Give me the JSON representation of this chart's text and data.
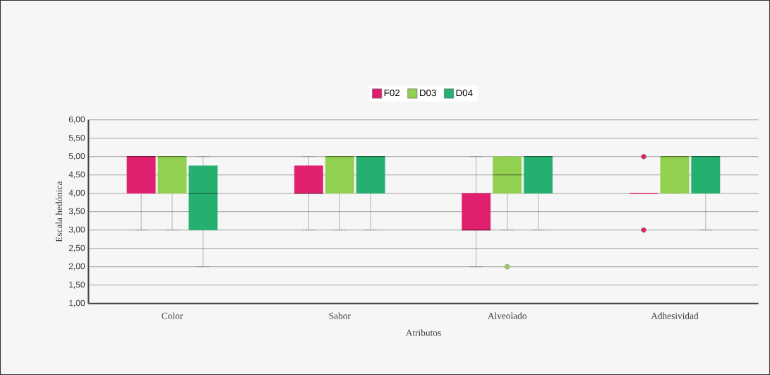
{
  "chart_data": {
    "type": "box",
    "xlabel": "Atributos",
    "ylabel": "Escala hedónica",
    "categories": [
      "Color",
      "Sabor",
      "Alveolado",
      "Adhesividad"
    ],
    "ylim": [
      1,
      6
    ],
    "yticks": [
      {
        "value": 1,
        "label": "1,00"
      },
      {
        "value": 1.5,
        "label": "1,50"
      },
      {
        "value": 2,
        "label": "2,00"
      },
      {
        "value": 2.5,
        "label": "2,50"
      },
      {
        "value": 3,
        "label": "3,00"
      },
      {
        "value": 3.5,
        "label": "3,50"
      },
      {
        "value": 4,
        "label": "4,00"
      },
      {
        "value": 4.5,
        "label": "4,50"
      },
      {
        "value": 5,
        "label": "5,00"
      },
      {
        "value": 5.5,
        "label": "5,50"
      },
      {
        "value": 6,
        "label": "6,00"
      }
    ],
    "grid": "y",
    "legend": "top",
    "series": [
      {
        "name": "F02",
        "color": "#e0206e",
        "boxes": [
          {
            "low": 3,
            "q1": 4,
            "median": 5,
            "q3": 5,
            "high": 5
          },
          {
            "low": 3,
            "q1": 4,
            "median": 4,
            "q3": 4.75,
            "high": 5
          },
          {
            "low": 2,
            "q1": 3,
            "median": 3,
            "q3": 4,
            "high": 5
          },
          {
            "low": 4,
            "q1": 4,
            "median": 4,
            "q3": 4,
            "high": 4,
            "outliers": [
              5,
              3
            ]
          }
        ]
      },
      {
        "name": "D03",
        "color": "#92d050",
        "boxes": [
          {
            "low": 3,
            "q1": 4,
            "median": 5,
            "q3": 5,
            "high": 5
          },
          {
            "low": 3,
            "q1": 4,
            "median": 5,
            "q3": 5,
            "high": 5
          },
          {
            "low": 3,
            "q1": 4,
            "median": 4.5,
            "q3": 5,
            "high": 5,
            "outliers": [
              2
            ]
          },
          {
            "low": 4,
            "q1": 4,
            "median": 5,
            "q3": 5,
            "high": 5
          }
        ]
      },
      {
        "name": "D04",
        "color": "#26b06f",
        "boxes": [
          {
            "low": 2,
            "q1": 3,
            "median": 4,
            "q3": 4.75,
            "high": 5
          },
          {
            "low": 3,
            "q1": 4,
            "median": 5,
            "q3": 5,
            "high": 5
          },
          {
            "low": 3,
            "q1": 4,
            "median": 5,
            "q3": 5,
            "high": 5
          },
          {
            "low": 3,
            "q1": 4,
            "median": 5,
            "q3": 5,
            "high": 5
          }
        ]
      }
    ]
  }
}
